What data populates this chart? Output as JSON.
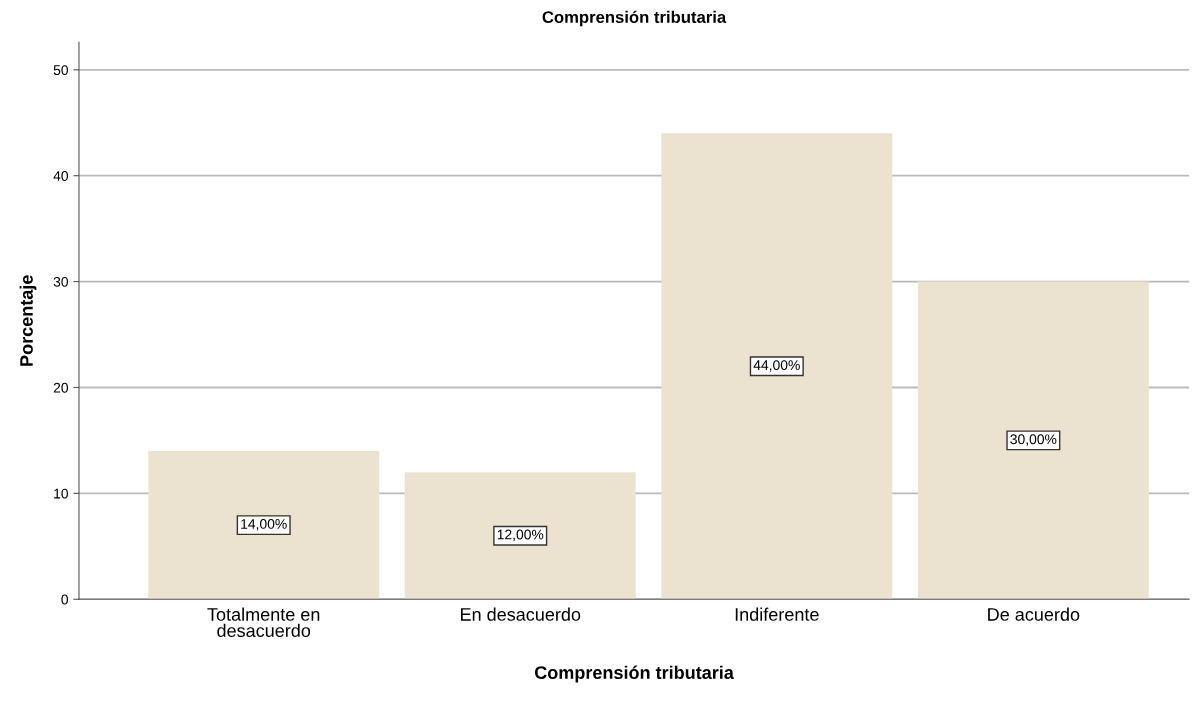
{
  "chart_data": {
    "type": "bar",
    "title": "Comprensión tributaria",
    "xlabel": "Comprensión tributaria",
    "ylabel": "Porcentaje",
    "categories": [
      "Totalmente en\ndesacuerdo",
      "En desacuerdo",
      "Indiferente",
      "De acuerdo"
    ],
    "values": [
      14,
      12,
      44,
      30
    ],
    "value_labels": [
      "14,00%",
      "12,00%",
      "44,00%",
      "30,00%"
    ],
    "color": "#ebe3cf",
    "ylim": [
      0,
      52.6
    ],
    "yticks": [
      0,
      10,
      20,
      30,
      40,
      50
    ],
    "grid": "y",
    "legend": false
  }
}
